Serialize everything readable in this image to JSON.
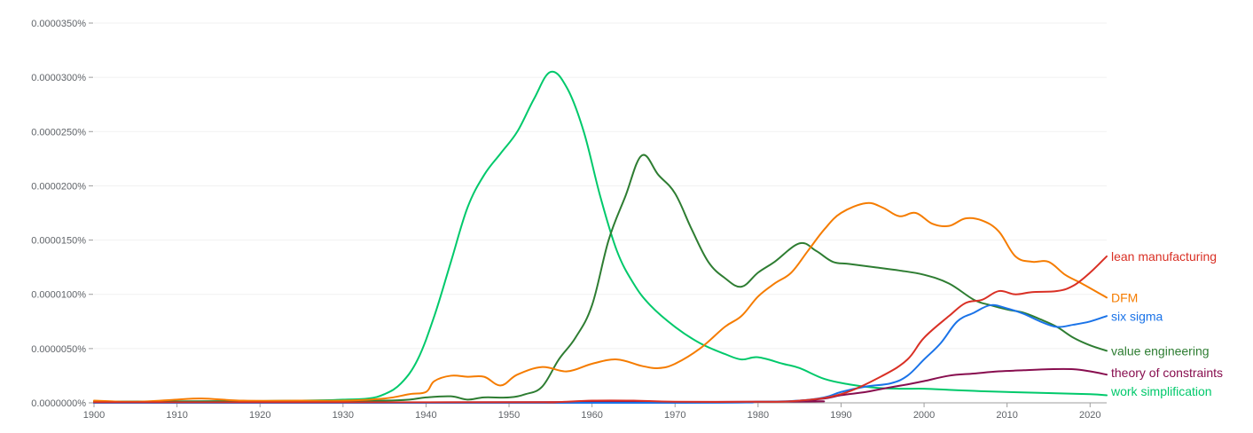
{
  "chart_data": {
    "type": "line",
    "title": "",
    "xlabel": "",
    "ylabel": "",
    "xlim": [
      1900,
      2022
    ],
    "ylim": [
      0,
      3.5e-06
    ],
    "grid": true,
    "legend_placement": "right (end of each line)",
    "x_ticks": [
      "1900",
      "1910",
      "1920",
      "1930",
      "1940",
      "1950",
      "1960",
      "1970",
      "1980",
      "1990",
      "2000",
      "2010",
      "2020"
    ],
    "y_ticks": [
      {
        "value": 0,
        "label": "0.0000000%"
      },
      {
        "value": 5e-07,
        "label": "0.0000050%"
      },
      {
        "value": 1e-06,
        "label": "0.0000100%"
      },
      {
        "value": 1.5e-06,
        "label": "0.0000150%"
      },
      {
        "value": 2e-06,
        "label": "0.0000200%"
      },
      {
        "value": 2.5e-06,
        "label": "0.0000250%"
      },
      {
        "value": 3e-06,
        "label": "0.0000300%"
      },
      {
        "value": 3.5e-06,
        "label": "0.0000350%"
      }
    ],
    "series": [
      {
        "name": "lean manufacturing",
        "color": "#d93025",
        "points": [
          [
            1900,
            5e-09
          ],
          [
            1950,
            5e-09
          ],
          [
            1955,
            5e-09
          ],
          [
            1960,
            2e-08
          ],
          [
            1965,
            2e-08
          ],
          [
            1970,
            1e-08
          ],
          [
            1980,
            1e-08
          ],
          [
            1985,
            2e-08
          ],
          [
            1990,
            8e-08
          ],
          [
            1995,
            2.5e-07
          ],
          [
            1998,
            4e-07
          ],
          [
            2000,
            6e-07
          ],
          [
            2003,
            8e-07
          ],
          [
            2005,
            9.2e-07
          ],
          [
            2007,
            9.5e-07
          ],
          [
            2009,
            1.03e-06
          ],
          [
            2011,
            1e-06
          ],
          [
            2013,
            1.02e-06
          ],
          [
            2016,
            1.03e-06
          ],
          [
            2018,
            1.08e-06
          ],
          [
            2020,
            1.2e-06
          ],
          [
            2022,
            1.35e-06
          ]
        ]
      },
      {
        "name": "DFM",
        "color": "#f57c00",
        "points": [
          [
            1900,
            2e-08
          ],
          [
            1905,
            1e-08
          ],
          [
            1910,
            3e-08
          ],
          [
            1913,
            4e-08
          ],
          [
            1918,
            2e-08
          ],
          [
            1925,
            2e-08
          ],
          [
            1930,
            2e-08
          ],
          [
            1935,
            4e-08
          ],
          [
            1938,
            8e-08
          ],
          [
            1940,
            1e-07
          ],
          [
            1941,
            2e-07
          ],
          [
            1943,
            2.5e-07
          ],
          [
            1945,
            2.4e-07
          ],
          [
            1947,
            2.4e-07
          ],
          [
            1949,
            1.6e-07
          ],
          [
            1951,
            2.6e-07
          ],
          [
            1954,
            3.3e-07
          ],
          [
            1957,
            2.9e-07
          ],
          [
            1960,
            3.6e-07
          ],
          [
            1963,
            4e-07
          ],
          [
            1966,
            3.4e-07
          ],
          [
            1968,
            3.2e-07
          ],
          [
            1970,
            3.6e-07
          ],
          [
            1973,
            5e-07
          ],
          [
            1976,
            7e-07
          ],
          [
            1978,
            8e-07
          ],
          [
            1980,
            9.8e-07
          ],
          [
            1982,
            1.1e-06
          ],
          [
            1984,
            1.2e-06
          ],
          [
            1986,
            1.4e-06
          ],
          [
            1988,
            1.6e-06
          ],
          [
            1990,
            1.75e-06
          ],
          [
            1993,
            1.84e-06
          ],
          [
            1995,
            1.8e-06
          ],
          [
            1997,
            1.72e-06
          ],
          [
            1999,
            1.75e-06
          ],
          [
            2001,
            1.65e-06
          ],
          [
            2003,
            1.63e-06
          ],
          [
            2005,
            1.7e-06
          ],
          [
            2007,
            1.68e-06
          ],
          [
            2009,
            1.58e-06
          ],
          [
            2011,
            1.35e-06
          ],
          [
            2013,
            1.3e-06
          ],
          [
            2015,
            1.3e-06
          ],
          [
            2017,
            1.18e-06
          ],
          [
            2019,
            1.1e-06
          ],
          [
            2022,
            9.7e-07
          ]
        ]
      },
      {
        "name": "six sigma",
        "color": "#1a73e8",
        "points": [
          [
            1900,
            0
          ],
          [
            1970,
            0
          ],
          [
            1980,
            1e-08
          ],
          [
            1985,
            2e-08
          ],
          [
            1988,
            5e-08
          ],
          [
            1990,
            1e-07
          ],
          [
            1993,
            1.5e-07
          ],
          [
            1996,
            1.8e-07
          ],
          [
            1998,
            2.5e-07
          ],
          [
            2000,
            4e-07
          ],
          [
            2002,
            5.5e-07
          ],
          [
            2004,
            7.5e-07
          ],
          [
            2006,
            8.3e-07
          ],
          [
            2008,
            9e-07
          ],
          [
            2010,
            8.7e-07
          ],
          [
            2012,
            8.2e-07
          ],
          [
            2014,
            7.5e-07
          ],
          [
            2016,
            7e-07
          ],
          [
            2018,
            7.2e-07
          ],
          [
            2020,
            7.5e-07
          ],
          [
            2022,
            8e-07
          ]
        ]
      },
      {
        "name": "value engineering",
        "color": "#2e7d32",
        "points": [
          [
            1900,
            1e-08
          ],
          [
            1930,
            2e-08
          ],
          [
            1935,
            2e-08
          ],
          [
            1938,
            3e-08
          ],
          [
            1940,
            5e-08
          ],
          [
            1943,
            6e-08
          ],
          [
            1945,
            3e-08
          ],
          [
            1947,
            5e-08
          ],
          [
            1950,
            5e-08
          ],
          [
            1952,
            8e-08
          ],
          [
            1954,
            1.5e-07
          ],
          [
            1956,
            4e-07
          ],
          [
            1958,
            6e-07
          ],
          [
            1960,
            9e-07
          ],
          [
            1962,
            1.5e-06
          ],
          [
            1964,
            1.9e-06
          ],
          [
            1966,
            2.28e-06
          ],
          [
            1968,
            2.1e-06
          ],
          [
            1970,
            1.93e-06
          ],
          [
            1972,
            1.6e-06
          ],
          [
            1974,
            1.3e-06
          ],
          [
            1976,
            1.15e-06
          ],
          [
            1978,
            1.07e-06
          ],
          [
            1980,
            1.2e-06
          ],
          [
            1982,
            1.3e-06
          ],
          [
            1985,
            1.47e-06
          ],
          [
            1987,
            1.4e-06
          ],
          [
            1989,
            1.3e-06
          ],
          [
            1991,
            1.28e-06
          ],
          [
            1994,
            1.25e-06
          ],
          [
            1997,
            1.22e-06
          ],
          [
            2000,
            1.18e-06
          ],
          [
            2003,
            1.1e-06
          ],
          [
            2006,
            9.5e-07
          ],
          [
            2008,
            9e-07
          ],
          [
            2010,
            8.6e-07
          ],
          [
            2012,
            8.3e-07
          ],
          [
            2014,
            7.7e-07
          ],
          [
            2016,
            7e-07
          ],
          [
            2018,
            6e-07
          ],
          [
            2020,
            5.3e-07
          ],
          [
            2022,
            4.8e-07
          ]
        ]
      },
      {
        "name": "theory of constraints",
        "color": "#880e4f",
        "points": [
          [
            1900,
            0
          ],
          [
            1980,
            1e-08
          ],
          [
            1985,
            2e-08
          ],
          [
            1988,
            4e-08
          ],
          [
            1990,
            7e-08
          ],
          [
            1993,
            1e-07
          ],
          [
            1995,
            1.3e-07
          ],
          [
            1998,
            1.7e-07
          ],
          [
            2000,
            2e-07
          ],
          [
            2003,
            2.5e-07
          ],
          [
            2006,
            2.7e-07
          ],
          [
            2009,
            2.9e-07
          ],
          [
            2012,
            3e-07
          ],
          [
            2015,
            3.1e-07
          ],
          [
            2018,
            3.1e-07
          ],
          [
            2020,
            2.9e-07
          ],
          [
            2022,
            2.6e-07
          ]
        ]
      },
      {
        "name": "work simplification",
        "color": "#00c96b",
        "points": [
          [
            1900,
            0
          ],
          [
            1925,
            2e-08
          ],
          [
            1930,
            3e-08
          ],
          [
            1933,
            4e-08
          ],
          [
            1935,
            8e-08
          ],
          [
            1937,
            1.8e-07
          ],
          [
            1939,
            4e-07
          ],
          [
            1941,
            8e-07
          ],
          [
            1943,
            1.3e-06
          ],
          [
            1945,
            1.8e-06
          ],
          [
            1947,
            2.1e-06
          ],
          [
            1949,
            2.3e-06
          ],
          [
            1951,
            2.5e-06
          ],
          [
            1953,
            2.8e-06
          ],
          [
            1955,
            3.05e-06
          ],
          [
            1957,
            2.9e-06
          ],
          [
            1959,
            2.5e-06
          ],
          [
            1961,
            1.9e-06
          ],
          [
            1963,
            1.4e-06
          ],
          [
            1965,
            1.1e-06
          ],
          [
            1967,
            9e-07
          ],
          [
            1970,
            7e-07
          ],
          [
            1973,
            5.5e-07
          ],
          [
            1976,
            4.5e-07
          ],
          [
            1978,
            4e-07
          ],
          [
            1980,
            4.2e-07
          ],
          [
            1983,
            3.6e-07
          ],
          [
            1985,
            3.2e-07
          ],
          [
            1988,
            2.2e-07
          ],
          [
            1991,
            1.7e-07
          ],
          [
            1994,
            1.4e-07
          ],
          [
            1997,
            1.3e-07
          ],
          [
            2000,
            1.3e-07
          ],
          [
            2003,
            1.2e-07
          ],
          [
            2006,
            1.1e-07
          ],
          [
            2010,
            1e-07
          ],
          [
            2015,
            9e-08
          ],
          [
            2020,
            8e-08
          ],
          [
            2022,
            7e-08
          ]
        ]
      }
    ]
  }
}
